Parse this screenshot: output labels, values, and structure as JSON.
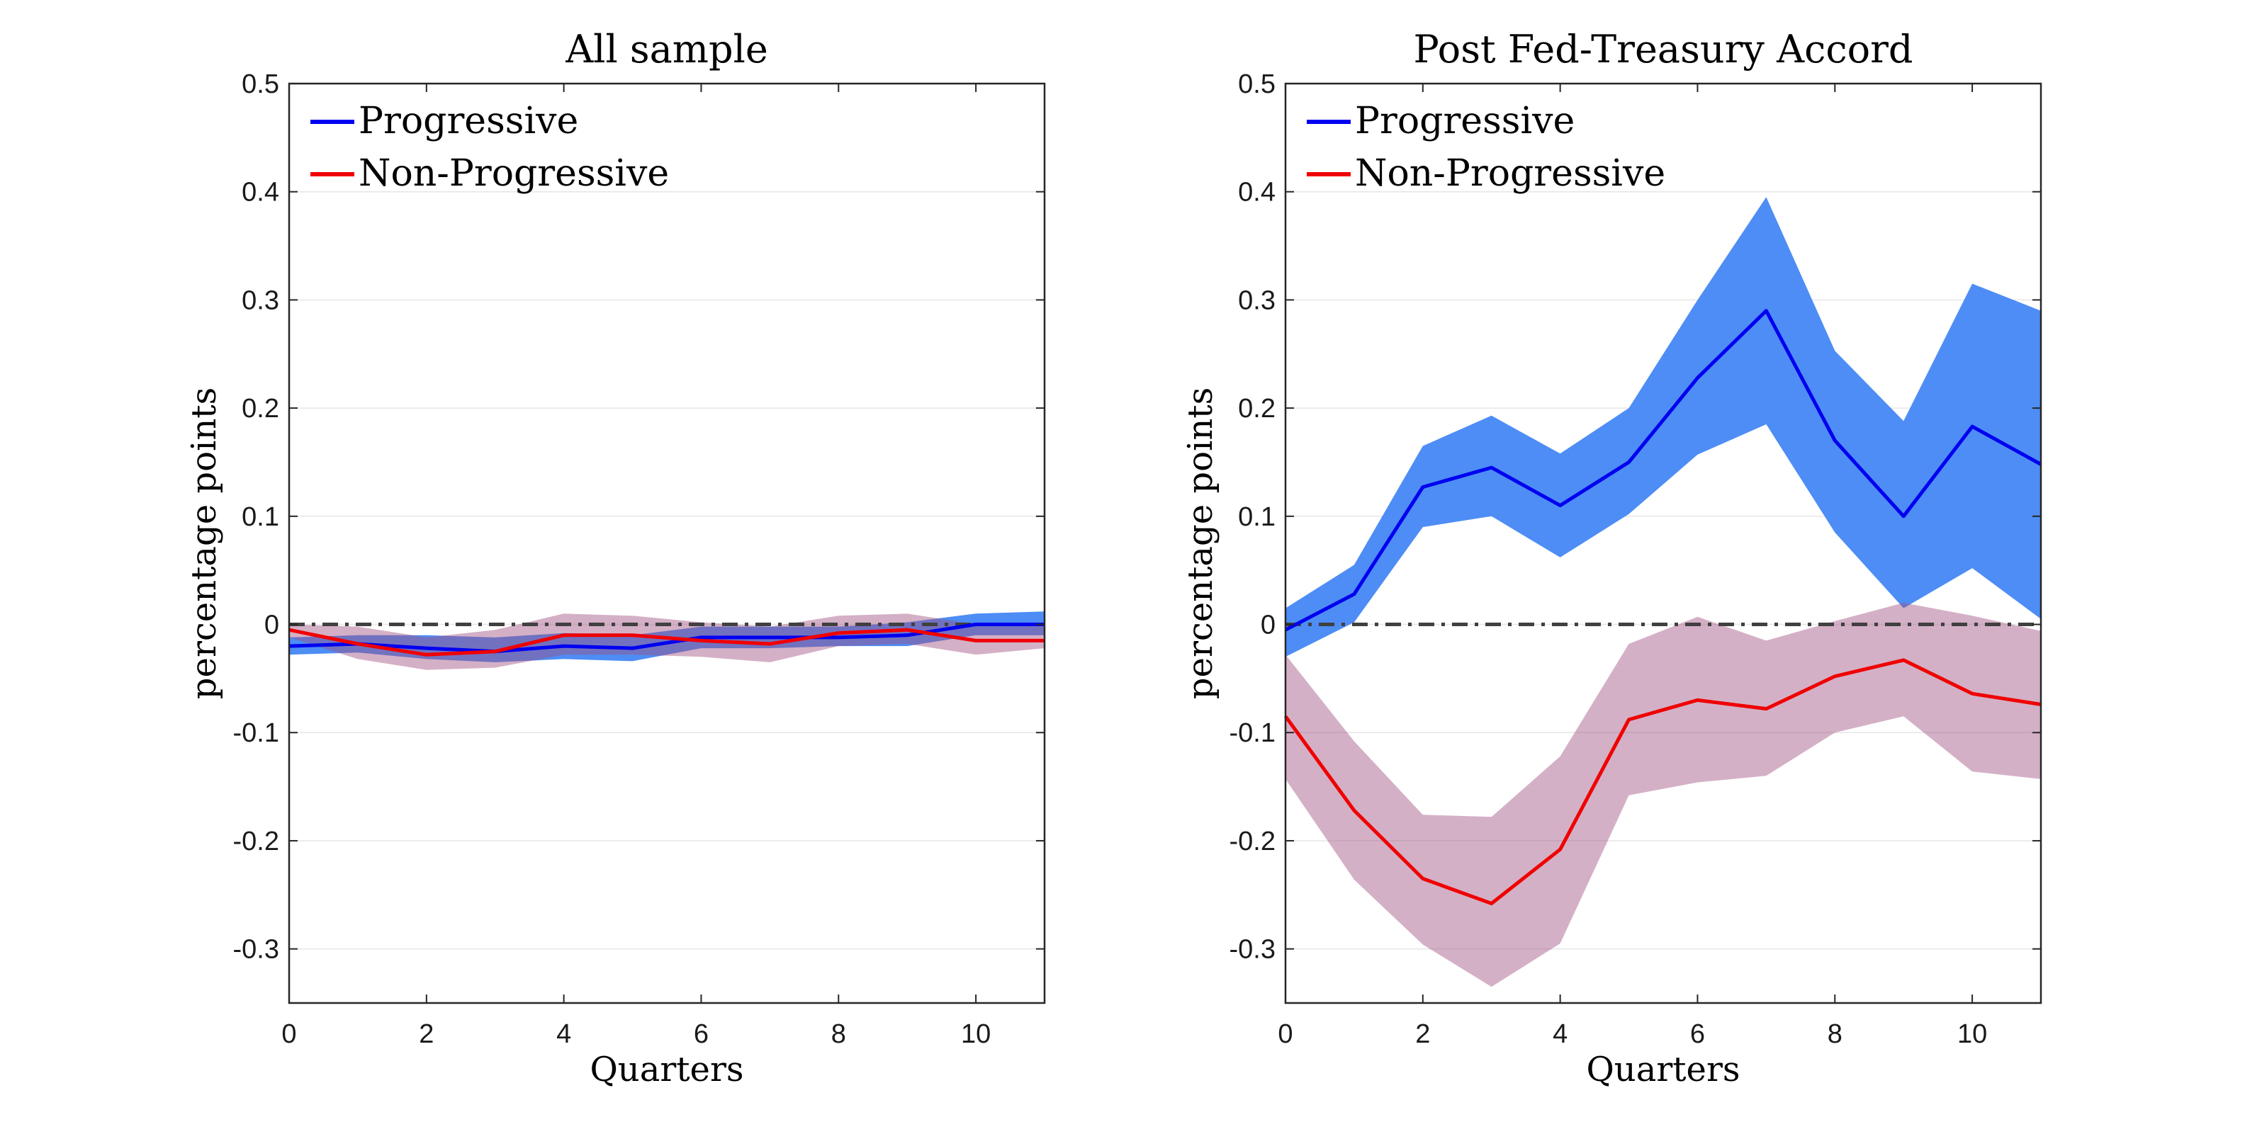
{
  "colors": {
    "progressive_line": "#0000f0",
    "progressive_band": "#4d8df5",
    "nonprogressive_line": "#f00000",
    "nonprogressive_band": "#a05080",
    "zero_line": "#404040",
    "grid": "#e6e6e6",
    "axes": "#262626"
  },
  "chart_data": [
    {
      "type": "line",
      "title": "All sample",
      "xlabel": "Quarters",
      "ylabel": "percentage points",
      "xlim": [
        0,
        11
      ],
      "ylim": [
        -0.35,
        0.5
      ],
      "xticks": [
        0,
        2,
        4,
        6,
        8,
        10
      ],
      "yticks": [
        -0.3,
        -0.2,
        -0.1,
        0,
        0.1,
        0.2,
        0.3,
        0.4,
        0.5
      ],
      "ytick_labels": [
        "-0.3",
        "-0.2",
        "-0.1",
        "0",
        "0.1",
        "0.2",
        "0.3",
        "0.4",
        "0.5"
      ],
      "grid": "horizontal",
      "legend_position": "top-left",
      "zero_line": "dash-dot",
      "x": [
        0,
        1,
        2,
        3,
        4,
        5,
        6,
        7,
        8,
        9,
        10,
        11
      ],
      "series": [
        {
          "name": "Progressive",
          "values": [
            -0.02,
            -0.018,
            -0.022,
            -0.025,
            -0.02,
            -0.022,
            -0.012,
            -0.012,
            -0.012,
            -0.01,
            0,
            0
          ],
          "band_upper": [
            -0.012,
            -0.01,
            -0.01,
            -0.012,
            -0.008,
            -0.01,
            -0.002,
            -0.002,
            -0.002,
            0.002,
            0.01,
            0.012
          ],
          "band_lower": [
            -0.028,
            -0.026,
            -0.032,
            -0.035,
            -0.032,
            -0.034,
            -0.022,
            -0.022,
            -0.02,
            -0.02,
            -0.01,
            -0.01
          ]
        },
        {
          "name": "Non-Progressive",
          "values": [
            -0.005,
            -0.018,
            -0.028,
            -0.025,
            -0.01,
            -0.01,
            -0.015,
            -0.018,
            -0.008,
            -0.005,
            -0.015,
            -0.015
          ],
          "band_upper": [
            0,
            -0.002,
            -0.012,
            -0.005,
            0.01,
            0.008,
            0.002,
            -0.002,
            0.008,
            0.01,
            0,
            0
          ],
          "band_lower": [
            -0.012,
            -0.032,
            -0.042,
            -0.04,
            -0.028,
            -0.028,
            -0.03,
            -0.035,
            -0.02,
            -0.018,
            -0.028,
            -0.022
          ]
        }
      ]
    },
    {
      "type": "line",
      "title": "Post Fed-Treasury Accord",
      "xlabel": "Quarters",
      "ylabel": "percentage points",
      "xlim": [
        0,
        11
      ],
      "ylim": [
        -0.35,
        0.5
      ],
      "xticks": [
        0,
        2,
        4,
        6,
        8,
        10
      ],
      "yticks": [
        -0.3,
        -0.2,
        -0.1,
        0,
        0.1,
        0.2,
        0.3,
        0.4,
        0.5
      ],
      "ytick_labels": [
        "-0.3",
        "-0.2",
        "-0.1",
        "0",
        "0.1",
        "0.2",
        "0.3",
        "0.4",
        "0.5"
      ],
      "grid": "horizontal",
      "legend_position": "top-left",
      "zero_line": "dash-dot",
      "x": [
        0,
        1,
        2,
        3,
        4,
        5,
        6,
        7,
        8,
        9,
        10,
        11
      ],
      "series": [
        {
          "name": "Progressive",
          "values": [
            -0.005,
            0.028,
            0.127,
            0.145,
            0.11,
            0.15,
            0.228,
            0.29,
            0.17,
            0.1,
            0.183,
            0.148
          ],
          "band_upper": [
            0.015,
            0.055,
            0.165,
            0.193,
            0.158,
            0.2,
            0.3,
            0.395,
            0.253,
            0.188,
            0.315,
            0.29
          ],
          "band_lower": [
            -0.03,
            0.002,
            0.09,
            0.1,
            0.062,
            0.102,
            0.157,
            0.185,
            0.085,
            0.015,
            0.052,
            0.005
          ]
        },
        {
          "name": "Non-Progressive",
          "values": [
            -0.085,
            -0.172,
            -0.235,
            -0.258,
            -0.208,
            -0.088,
            -0.07,
            -0.078,
            -0.048,
            -0.033,
            -0.064,
            -0.074
          ],
          "band_upper": [
            -0.028,
            -0.108,
            -0.176,
            -0.178,
            -0.122,
            -0.018,
            0.007,
            -0.015,
            0.003,
            0.02,
            0.008,
            -0.006
          ],
          "band_lower": [
            -0.143,
            -0.236,
            -0.296,
            -0.335,
            -0.295,
            -0.158,
            -0.146,
            -0.14,
            -0.1,
            -0.085,
            -0.136,
            -0.143
          ]
        }
      ]
    }
  ]
}
